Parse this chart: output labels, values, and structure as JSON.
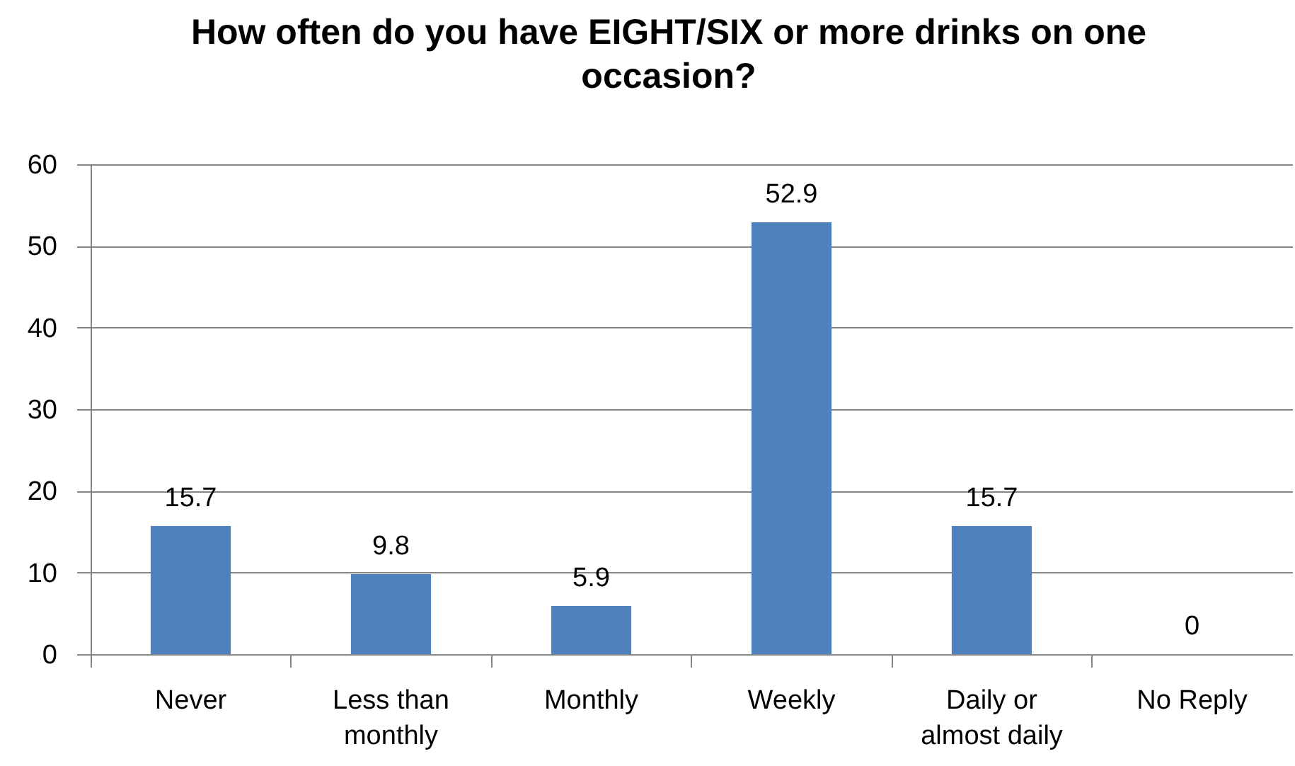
{
  "chart_data": {
    "type": "bar",
    "title": "How often do you have EIGHT/SIX or more drinks on one occasion?",
    "categories": [
      "Never",
      "Less than monthly",
      "Monthly",
      "Weekly",
      "Daily or almost daily",
      "No Reply"
    ],
    "values": [
      15.7,
      9.8,
      5.9,
      52.9,
      15.7,
      0
    ],
    "color": "#4f81bd",
    "ylim": [
      0,
      60
    ],
    "yticks": [
      0,
      10,
      20,
      30,
      40,
      50,
      60
    ],
    "grid": "y",
    "data_labels": true
  }
}
